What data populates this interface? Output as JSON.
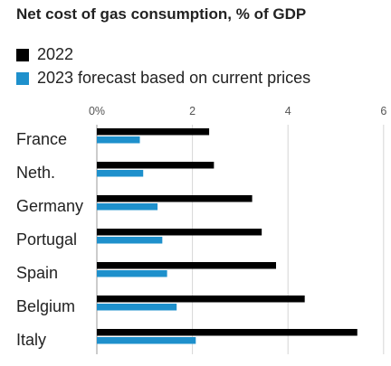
{
  "chart_data": {
    "type": "bar",
    "orientation": "horizontal",
    "title": "Net cost of gas consumption, % of GDP",
    "categories": [
      "France",
      "Neth.",
      "Germany",
      "Portugal",
      "Spain",
      "Belgium",
      "Italy"
    ],
    "series": [
      {
        "name": "2022",
        "color": "#000000",
        "values": [
          2.35,
          2.45,
          3.25,
          3.45,
          3.75,
          4.35,
          5.45
        ]
      },
      {
        "name": "2023 forecast based on current prices",
        "color": "#1e90cc",
        "values": [
          0.9,
          0.97,
          1.27,
          1.37,
          1.47,
          1.67,
          2.07
        ]
      }
    ],
    "xticks": [
      "0%",
      "2",
      "4",
      "6"
    ],
    "xlim": [
      0,
      6
    ],
    "grid": true,
    "legend_position": "top-left"
  }
}
